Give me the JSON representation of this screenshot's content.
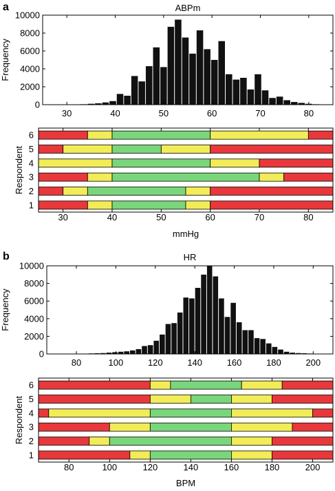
{
  "colors": {
    "red": "#e8383b",
    "yellow": "#f2ec57",
    "green": "#7ad67a",
    "bar": "#111111"
  },
  "panels": [
    {
      "letter": "a",
      "hist": {
        "title": "ABPm",
        "ylabel": "Frequency",
        "xlim": [
          25,
          85
        ],
        "ylim": [
          0,
          10000
        ],
        "xticks": [
          30,
          40,
          50,
          60,
          70,
          80
        ],
        "yticks": [
          0,
          2000,
          4000,
          6000,
          8000,
          10000
        ],
        "bin_width": 1.5,
        "x": [
          30.5,
          32,
          33.5,
          35,
          36.5,
          38,
          39.5,
          41,
          42.5,
          44,
          45.5,
          47,
          48.5,
          50,
          51.5,
          53,
          54.5,
          56,
          57.5,
          59,
          60.5,
          62,
          63.5,
          65,
          66.5,
          68,
          69.5,
          71,
          72.5,
          74,
          75.5,
          77,
          78.5,
          80,
          81.5
        ],
        "values": [
          20,
          30,
          50,
          100,
          150,
          250,
          400,
          1200,
          1000,
          3200,
          2600,
          4300,
          6400,
          4200,
          8700,
          9500,
          7500,
          5700,
          8300,
          6200,
          5000,
          7100,
          3400,
          2800,
          3000,
          1700,
          3400,
          1600,
          750,
          900,
          500,
          300,
          200,
          100,
          50
        ]
      },
      "resp": {
        "xlabel": "mmHg",
        "ylabel": "Respondent",
        "xlim": [
          25,
          85
        ],
        "xticks": [
          30,
          40,
          50,
          60,
          70,
          80
        ],
        "rows": [
          {
            "label": "6",
            "segments": [
              [
                25,
                35,
                "red"
              ],
              [
                35,
                40,
                "yellow"
              ],
              [
                40,
                60,
                "green"
              ],
              [
                60,
                80,
                "yellow"
              ],
              [
                80,
                85,
                "red"
              ]
            ]
          },
          {
            "label": "5",
            "segments": [
              [
                25,
                30,
                "red"
              ],
              [
                30,
                40,
                "yellow"
              ],
              [
                40,
                50,
                "green"
              ],
              [
                50,
                60,
                "yellow"
              ],
              [
                60,
                85,
                "red"
              ]
            ]
          },
          {
            "label": "4",
            "segments": [
              [
                25,
                40,
                "yellow"
              ],
              [
                40,
                60,
                "green"
              ],
              [
                60,
                70,
                "yellow"
              ],
              [
                70,
                85,
                "red"
              ]
            ]
          },
          {
            "label": "3",
            "segments": [
              [
                25,
                35,
                "red"
              ],
              [
                35,
                40,
                "yellow"
              ],
              [
                40,
                70,
                "green"
              ],
              [
                70,
                75,
                "yellow"
              ],
              [
                75,
                85,
                "red"
              ]
            ]
          },
          {
            "label": "2",
            "segments": [
              [
                25,
                30,
                "red"
              ],
              [
                30,
                35,
                "yellow"
              ],
              [
                35,
                55,
                "green"
              ],
              [
                55,
                60,
                "yellow"
              ],
              [
                60,
                85,
                "red"
              ]
            ]
          },
          {
            "label": "1",
            "segments": [
              [
                25,
                35,
                "red"
              ],
              [
                35,
                40,
                "yellow"
              ],
              [
                40,
                55,
                "green"
              ],
              [
                55,
                60,
                "yellow"
              ],
              [
                60,
                85,
                "red"
              ]
            ]
          }
        ]
      }
    },
    {
      "letter": "b",
      "hist": {
        "title": "HR",
        "ylabel": "Frequency",
        "xlim": [
          65,
          210
        ],
        "ylim": [
          0,
          10000
        ],
        "xticks": [
          80,
          100,
          120,
          140,
          160,
          180,
          200
        ],
        "yticks": [
          0,
          2000,
          4000,
          6000,
          8000,
          10000
        ],
        "bin_width": 3,
        "x": [
          87.5,
          90.5,
          93.5,
          96.5,
          99.5,
          102.5,
          105.5,
          108.5,
          111.5,
          114.5,
          117.5,
          120.5,
          123.5,
          126.5,
          129.5,
          132.5,
          135.5,
          138.5,
          141.5,
          144.5,
          147.5,
          150.5,
          153.5,
          156.5,
          159.5,
          162.5,
          165.5,
          168.5,
          171.5,
          174.5,
          177.5,
          180.5,
          183.5,
          186.5,
          189.5,
          192.5,
          195.5,
          198.5,
          201.5
        ],
        "values": [
          60,
          80,
          100,
          150,
          200,
          250,
          300,
          400,
          550,
          900,
          1000,
          1500,
          2200,
          3400,
          3500,
          4700,
          6400,
          6300,
          7500,
          9000,
          10000,
          8800,
          6300,
          4200,
          5800,
          3600,
          2700,
          2700,
          1800,
          1700,
          1200,
          800,
          500,
          250,
          150,
          100,
          80,
          50,
          30
        ]
      },
      "resp": {
        "xlabel": "BPM",
        "ylabel": "Respondent",
        "xlim": [
          65,
          210
        ],
        "xticks": [
          80,
          100,
          120,
          140,
          160,
          180,
          200
        ],
        "rows": [
          {
            "label": "6",
            "segments": [
              [
                65,
                120,
                "red"
              ],
              [
                120,
                130,
                "yellow"
              ],
              [
                130,
                165,
                "green"
              ],
              [
                165,
                185,
                "yellow"
              ],
              [
                185,
                210,
                "red"
              ]
            ]
          },
          {
            "label": "5",
            "segments": [
              [
                65,
                120,
                "red"
              ],
              [
                120,
                140,
                "yellow"
              ],
              [
                140,
                160,
                "green"
              ],
              [
                160,
                180,
                "yellow"
              ],
              [
                180,
                210,
                "red"
              ]
            ]
          },
          {
            "label": "4",
            "segments": [
              [
                65,
                70,
                "red"
              ],
              [
                70,
                120,
                "yellow"
              ],
              [
                120,
                160,
                "green"
              ],
              [
                160,
                200,
                "yellow"
              ],
              [
                200,
                210,
                "red"
              ]
            ]
          },
          {
            "label": "3",
            "segments": [
              [
                65,
                100,
                "red"
              ],
              [
                100,
                120,
                "yellow"
              ],
              [
                120,
                160,
                "green"
              ],
              [
                160,
                190,
                "yellow"
              ],
              [
                190,
                210,
                "red"
              ]
            ]
          },
          {
            "label": "2",
            "segments": [
              [
                65,
                90,
                "red"
              ],
              [
                90,
                100,
                "yellow"
              ],
              [
                100,
                160,
                "green"
              ],
              [
                160,
                180,
                "yellow"
              ],
              [
                180,
                210,
                "red"
              ]
            ]
          },
          {
            "label": "1",
            "segments": [
              [
                65,
                110,
                "red"
              ],
              [
                110,
                120,
                "yellow"
              ],
              [
                120,
                160,
                "green"
              ],
              [
                160,
                180,
                "yellow"
              ],
              [
                180,
                210,
                "red"
              ]
            ]
          }
        ]
      }
    }
  ]
}
